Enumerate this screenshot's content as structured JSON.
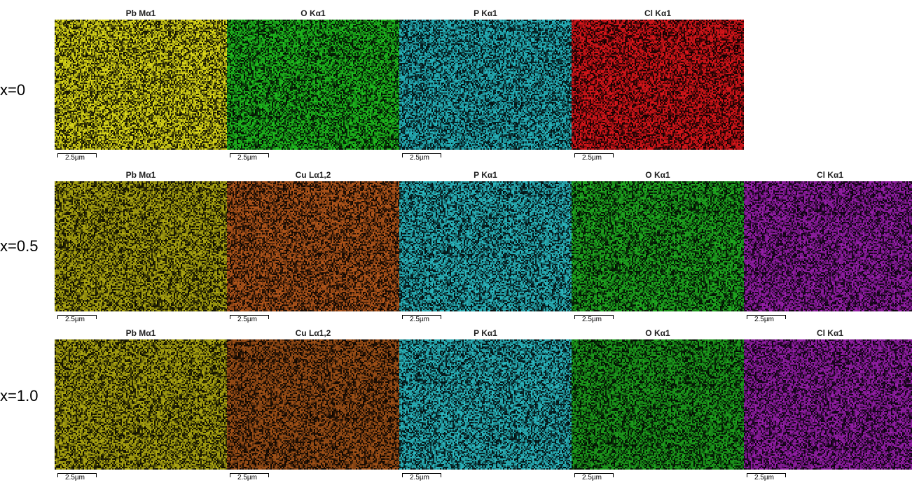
{
  "scale_label": "2.5µm",
  "rows": [
    {
      "label": "x=0",
      "panels": [
        {
          "title": "Pb Mα1",
          "color": "#e2df1a"
        },
        {
          "title": "O Kα1",
          "color": "#1fc11f"
        },
        {
          "title": "P Kα1",
          "color": "#27b9c2"
        },
        {
          "title": "Cl Kα1",
          "color": "#e0161b"
        }
      ]
    },
    {
      "label": "x=0.5",
      "panels": [
        {
          "title": "Pb Mα1",
          "color": "#b2ac12"
        },
        {
          "title": "Cu Lα1,2",
          "color": "#b8591c"
        },
        {
          "title": "P Kα1",
          "color": "#2bbcc4"
        },
        {
          "title": "O Kα1",
          "color": "#20b021"
        },
        {
          "title": "Cl Kα1",
          "color": "#9a1fae"
        }
      ]
    },
    {
      "label": "x=1.0",
      "panels": [
        {
          "title": "Pb Mα1",
          "color": "#b2ac12"
        },
        {
          "title": "Cu Lα1,2",
          "color": "#a45318"
        },
        {
          "title": "P Kα1",
          "color": "#2bbcc4"
        },
        {
          "title": "O Kα1",
          "color": "#1ea51e"
        },
        {
          "title": "Cl Kα1",
          "color": "#9a1fae"
        }
      ]
    }
  ]
}
